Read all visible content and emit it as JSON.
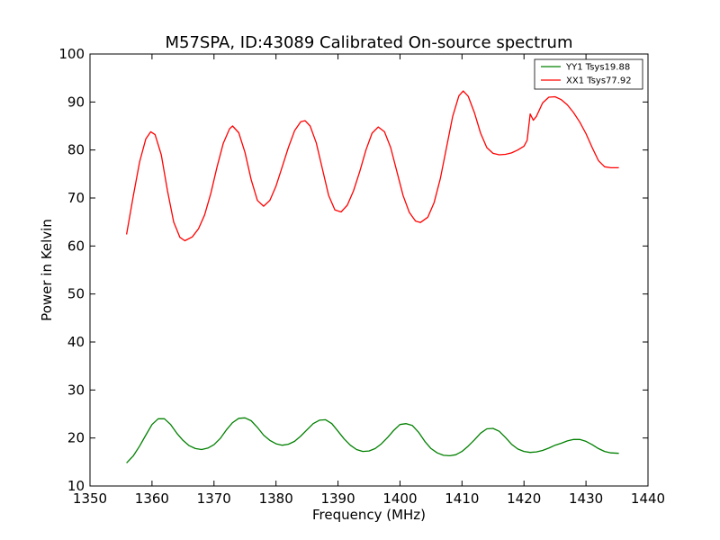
{
  "chart_data": {
    "type": "line",
    "title": "M57SPA, ID:43089 Calibrated On-source spectrum",
    "xlabel": "Frequency (MHz)",
    "ylabel": "Power in Kelvin",
    "xlim": [
      1350,
      1440
    ],
    "ylim": [
      10,
      100
    ],
    "xticks": [
      1350,
      1360,
      1370,
      1380,
      1390,
      1400,
      1410,
      1420,
      1430,
      1440
    ],
    "yticks": [
      10,
      20,
      30,
      40,
      50,
      60,
      70,
      80,
      90,
      100
    ],
    "grid": false,
    "legend_position": "top-right",
    "series": [
      {
        "name": "YY1 Tsys19.88",
        "color": "#008000",
        "points": [
          [
            1355.9,
            14.8
          ],
          [
            1357.0,
            16.3
          ],
          [
            1358.0,
            18.3
          ],
          [
            1359.0,
            20.6
          ],
          [
            1360.0,
            22.8
          ],
          [
            1361.0,
            24.0
          ],
          [
            1362.0,
            24.0
          ],
          [
            1363.0,
            22.8
          ],
          [
            1364.0,
            21.0
          ],
          [
            1365.0,
            19.5
          ],
          [
            1366.0,
            18.4
          ],
          [
            1367.0,
            17.8
          ],
          [
            1368.0,
            17.6
          ],
          [
            1369.0,
            17.9
          ],
          [
            1370.0,
            18.6
          ],
          [
            1371.0,
            19.9
          ],
          [
            1372.0,
            21.7
          ],
          [
            1373.0,
            23.2
          ],
          [
            1374.0,
            24.1
          ],
          [
            1375.0,
            24.2
          ],
          [
            1376.0,
            23.6
          ],
          [
            1377.0,
            22.2
          ],
          [
            1378.0,
            20.6
          ],
          [
            1379.0,
            19.5
          ],
          [
            1380.0,
            18.8
          ],
          [
            1381.0,
            18.5
          ],
          [
            1382.0,
            18.7
          ],
          [
            1383.0,
            19.3
          ],
          [
            1384.0,
            20.4
          ],
          [
            1385.0,
            21.7
          ],
          [
            1386.0,
            23.0
          ],
          [
            1387.0,
            23.7
          ],
          [
            1388.0,
            23.8
          ],
          [
            1389.0,
            23.0
          ],
          [
            1390.0,
            21.4
          ],
          [
            1391.0,
            19.8
          ],
          [
            1392.0,
            18.5
          ],
          [
            1393.0,
            17.6
          ],
          [
            1394.0,
            17.2
          ],
          [
            1395.0,
            17.3
          ],
          [
            1396.0,
            17.8
          ],
          [
            1397.0,
            18.8
          ],
          [
            1398.0,
            20.1
          ],
          [
            1399.0,
            21.6
          ],
          [
            1400.0,
            22.8
          ],
          [
            1401.0,
            23.0
          ],
          [
            1402.0,
            22.6
          ],
          [
            1403.0,
            21.2
          ],
          [
            1404.0,
            19.3
          ],
          [
            1405.0,
            17.8
          ],
          [
            1406.0,
            16.9
          ],
          [
            1407.0,
            16.4
          ],
          [
            1408.0,
            16.3
          ],
          [
            1409.0,
            16.5
          ],
          [
            1410.0,
            17.2
          ],
          [
            1411.0,
            18.3
          ],
          [
            1412.0,
            19.6
          ],
          [
            1413.0,
            21.0
          ],
          [
            1414.0,
            21.9
          ],
          [
            1415.0,
            22.0
          ],
          [
            1416.0,
            21.4
          ],
          [
            1417.0,
            20.1
          ],
          [
            1418.0,
            18.7
          ],
          [
            1419.0,
            17.7
          ],
          [
            1420.0,
            17.2
          ],
          [
            1421.0,
            17.0
          ],
          [
            1422.0,
            17.1
          ],
          [
            1423.0,
            17.4
          ],
          [
            1424.0,
            17.9
          ],
          [
            1425.0,
            18.5
          ],
          [
            1426.0,
            18.9
          ],
          [
            1427.0,
            19.4
          ],
          [
            1428.0,
            19.7
          ],
          [
            1429.0,
            19.7
          ],
          [
            1430.0,
            19.3
          ],
          [
            1431.0,
            18.6
          ],
          [
            1432.0,
            17.8
          ],
          [
            1433.0,
            17.2
          ],
          [
            1434.0,
            16.9
          ],
          [
            1435.3,
            16.8
          ]
        ]
      },
      {
        "name": "XX1 Tsys77.92",
        "color": "#ff0000",
        "points": [
          [
            1355.9,
            62.4
          ],
          [
            1357.0,
            70.5
          ],
          [
            1358.0,
            77.5
          ],
          [
            1359.0,
            82.3
          ],
          [
            1359.8,
            83.8
          ],
          [
            1360.5,
            83.2
          ],
          [
            1361.5,
            79.0
          ],
          [
            1362.5,
            71.5
          ],
          [
            1363.5,
            65.0
          ],
          [
            1364.5,
            61.8
          ],
          [
            1365.3,
            61.1
          ],
          [
            1366.5,
            61.9
          ],
          [
            1367.5,
            63.6
          ],
          [
            1368.5,
            66.5
          ],
          [
            1369.5,
            71.0
          ],
          [
            1370.5,
            76.5
          ],
          [
            1371.5,
            81.4
          ],
          [
            1372.5,
            84.4
          ],
          [
            1373.0,
            85.0
          ],
          [
            1374.0,
            83.6
          ],
          [
            1375.0,
            79.5
          ],
          [
            1376.0,
            73.8
          ],
          [
            1377.0,
            69.5
          ],
          [
            1378.0,
            68.3
          ],
          [
            1379.0,
            69.5
          ],
          [
            1380.0,
            72.5
          ],
          [
            1381.0,
            76.5
          ],
          [
            1382.0,
            80.5
          ],
          [
            1383.0,
            84.0
          ],
          [
            1384.0,
            85.9
          ],
          [
            1384.7,
            86.1
          ],
          [
            1385.5,
            85.0
          ],
          [
            1386.5,
            81.5
          ],
          [
            1387.5,
            76.0
          ],
          [
            1388.5,
            70.5
          ],
          [
            1389.5,
            67.5
          ],
          [
            1390.5,
            67.1
          ],
          [
            1391.5,
            68.5
          ],
          [
            1392.5,
            71.5
          ],
          [
            1393.5,
            75.5
          ],
          [
            1394.5,
            80.0
          ],
          [
            1395.5,
            83.5
          ],
          [
            1396.5,
            84.8
          ],
          [
            1397.5,
            83.8
          ],
          [
            1398.5,
            80.5
          ],
          [
            1399.5,
            75.5
          ],
          [
            1400.5,
            70.5
          ],
          [
            1401.5,
            67.0
          ],
          [
            1402.5,
            65.2
          ],
          [
            1403.3,
            64.9
          ],
          [
            1404.5,
            66.0
          ],
          [
            1405.5,
            69.0
          ],
          [
            1406.5,
            74.0
          ],
          [
            1407.5,
            80.5
          ],
          [
            1408.5,
            87.0
          ],
          [
            1409.5,
            91.3
          ],
          [
            1410.2,
            92.3
          ],
          [
            1411.0,
            91.2
          ],
          [
            1412.0,
            87.8
          ],
          [
            1413.0,
            83.5
          ],
          [
            1414.0,
            80.5
          ],
          [
            1415.0,
            79.3
          ],
          [
            1416.0,
            79.0
          ],
          [
            1417.0,
            79.1
          ],
          [
            1418.0,
            79.4
          ],
          [
            1419.0,
            80.0
          ],
          [
            1420.0,
            80.8
          ],
          [
            1420.5,
            82.0
          ],
          [
            1421.0,
            87.5
          ],
          [
            1421.5,
            86.2
          ],
          [
            1422.0,
            87.0
          ],
          [
            1423.0,
            89.8
          ],
          [
            1424.0,
            91.0
          ],
          [
            1425.0,
            91.1
          ],
          [
            1426.0,
            90.5
          ],
          [
            1427.0,
            89.4
          ],
          [
            1428.0,
            87.8
          ],
          [
            1429.0,
            85.8
          ],
          [
            1430.0,
            83.4
          ],
          [
            1431.0,
            80.5
          ],
          [
            1432.0,
            77.8
          ],
          [
            1433.0,
            76.5
          ],
          [
            1434.0,
            76.3
          ],
          [
            1435.3,
            76.3
          ]
        ]
      }
    ]
  }
}
